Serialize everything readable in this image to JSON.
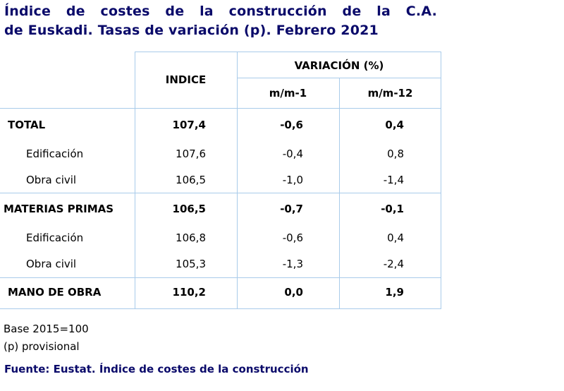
{
  "title": "Índice de costes de la construcción de la C.A. de Euskadi. Tasas de variación (p). Febrero 2021",
  "table": {
    "header": {
      "index": "INDICE",
      "variation": "VARIACIÓN (%)",
      "mm1": "m/m-1",
      "mm12": "m/m-12"
    },
    "rows": [
      [
        "TOTAL",
        "107,4",
        "-0,6",
        "0,4"
      ],
      [
        "Edificación",
        "107,6",
        "-0,4",
        "0,8"
      ],
      [
        "Obra civil",
        "106,5",
        "-1,0",
        "-1,4"
      ],
      [
        "MATERIAS PRIMAS",
        "106,5",
        "-0,7",
        "-0,1"
      ],
      [
        "Edificación",
        "106,8",
        "-0,6",
        "0,4"
      ],
      [
        "Obra civil",
        "105,3",
        "-1,3",
        "-2,4"
      ],
      [
        "MANO DE OBRA",
        "110,2",
        "0,0",
        "1,9"
      ]
    ]
  },
  "notes": [
    "Base 2015=100",
    "(p) provisional"
  ],
  "source": "Fuente: Eustat. Índice de costes de la construcción"
}
